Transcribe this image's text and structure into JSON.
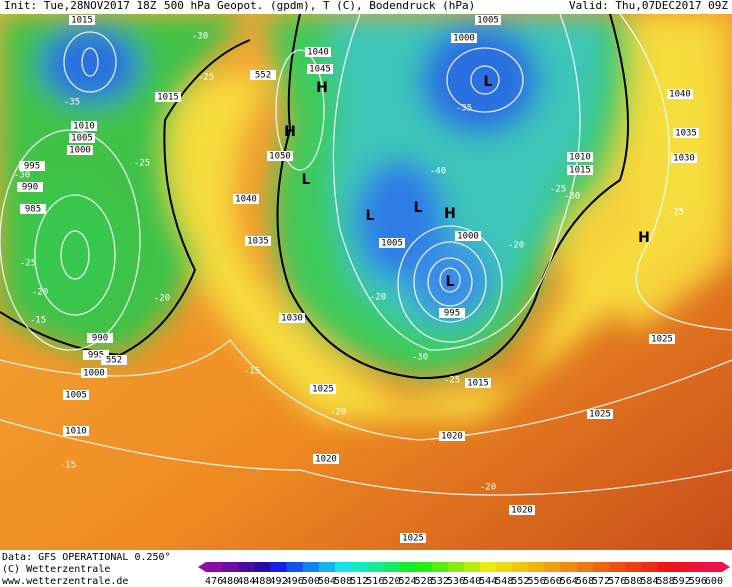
{
  "header": {
    "init": "Init: Tue,28NOV2017 18Z",
    "title": "500 hPa Geopot. (gpdm), T (C), Bodendruck (hPa)",
    "valid": "Valid: Thu,07DEC2017 09Z"
  },
  "footer": {
    "data": "Data: GFS OPERATIONAL 0.250°",
    "copyright": "(C) Wetterzentrale",
    "url": "www.wetterzentrale.de"
  },
  "legend": {
    "values": [
      476,
      480,
      484,
      488,
      492,
      496,
      500,
      504,
      508,
      512,
      516,
      520,
      524,
      528,
      532,
      536,
      540,
      544,
      548,
      552,
      556,
      560,
      564,
      568,
      572,
      576,
      580,
      584,
      588,
      592,
      596,
      600
    ]
  },
  "isobar_labels": [
    "1015",
    "1015",
    "1010",
    "1005",
    "1000",
    "995",
    "990",
    "985",
    "990",
    "995",
    "1000",
    "1005",
    "1010",
    "1040",
    "1045",
    "1050",
    "1040",
    "1035",
    "1030",
    "1025",
    "1020",
    "1005",
    "1000",
    "1005",
    "1000",
    "995",
    "1010",
    "1015",
    "1040",
    "1035",
    "1030",
    "1025",
    "1025",
    "1020",
    "1020",
    "1015",
    "1025",
    "552",
    "552"
  ],
  "temp_labels": [
    "-30",
    "-25",
    "-35",
    "-25",
    "-30",
    "-25",
    "-20",
    "-15",
    "-20",
    "-15",
    "-20",
    "-20",
    "-30",
    "-25",
    "-20",
    "-15",
    "-40",
    "-35",
    "-30",
    "-25",
    "-20",
    "-25"
  ],
  "centers": [
    "H",
    "H",
    "L",
    "L",
    "L",
    "H",
    "L",
    "L",
    "H"
  ]
}
